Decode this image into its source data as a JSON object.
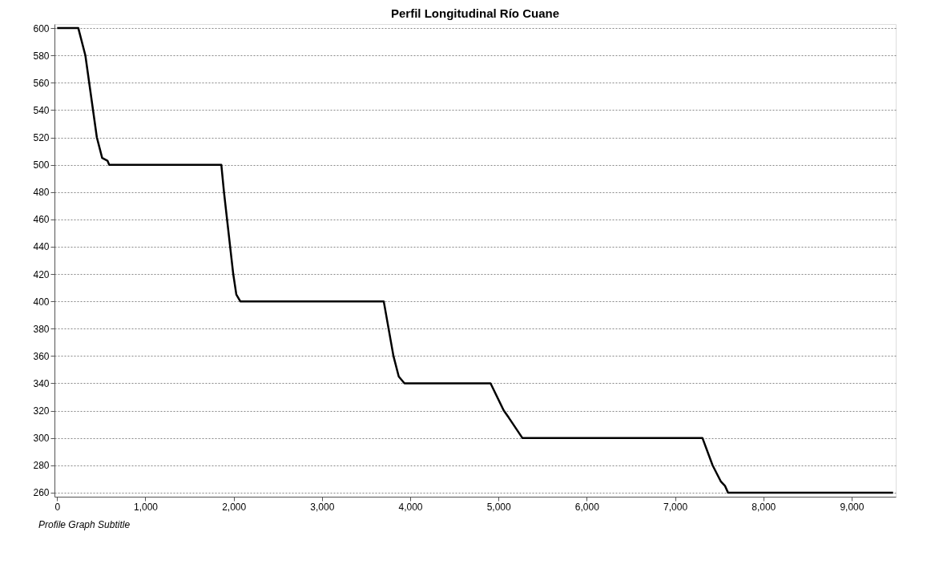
{
  "chart_data": {
    "type": "line",
    "title": "Perfil Longitudinal Río Cuane",
    "annotations": [
      "Profile Graph Subtitle"
    ],
    "series": [
      {
        "color": "#000000",
        "x": [
          0,
          240,
          320,
          450,
          510,
          570,
          590,
          1860,
          1890,
          1995,
          2030,
          2075,
          3700,
          3810,
          3870,
          3935,
          4910,
          5060,
          5115,
          5270,
          7310,
          7425,
          7520,
          7565,
          7600,
          9470
        ],
        "values": [
          600,
          600,
          580,
          520,
          505,
          503,
          500,
          500,
          480,
          420,
          405,
          400,
          400,
          360,
          345,
          340,
          340,
          320,
          315,
          300,
          300,
          280,
          268,
          265,
          260,
          260
        ]
      }
    ],
    "xlim": [
      -30,
      9500
    ],
    "xticks": [
      {
        "value": 0,
        "label": "0"
      },
      {
        "value": 1000,
        "label": "1,000"
      },
      {
        "value": 2000,
        "label": "2,000"
      },
      {
        "value": 3000,
        "label": "3,000"
      },
      {
        "value": 4000,
        "label": "4,000"
      },
      {
        "value": 5000,
        "label": "5,000"
      },
      {
        "value": 6000,
        "label": "6,000"
      },
      {
        "value": 7000,
        "label": "7,000"
      },
      {
        "value": 8000,
        "label": "8,000"
      },
      {
        "value": 9000,
        "label": "9,000"
      }
    ],
    "ylim": [
      257,
      603
    ],
    "yticks": [
      260,
      280,
      300,
      320,
      340,
      360,
      380,
      400,
      420,
      440,
      460,
      480,
      500,
      520,
      540,
      560,
      580,
      600
    ],
    "grid": "y",
    "marker": "none",
    "line_style": "solid"
  }
}
